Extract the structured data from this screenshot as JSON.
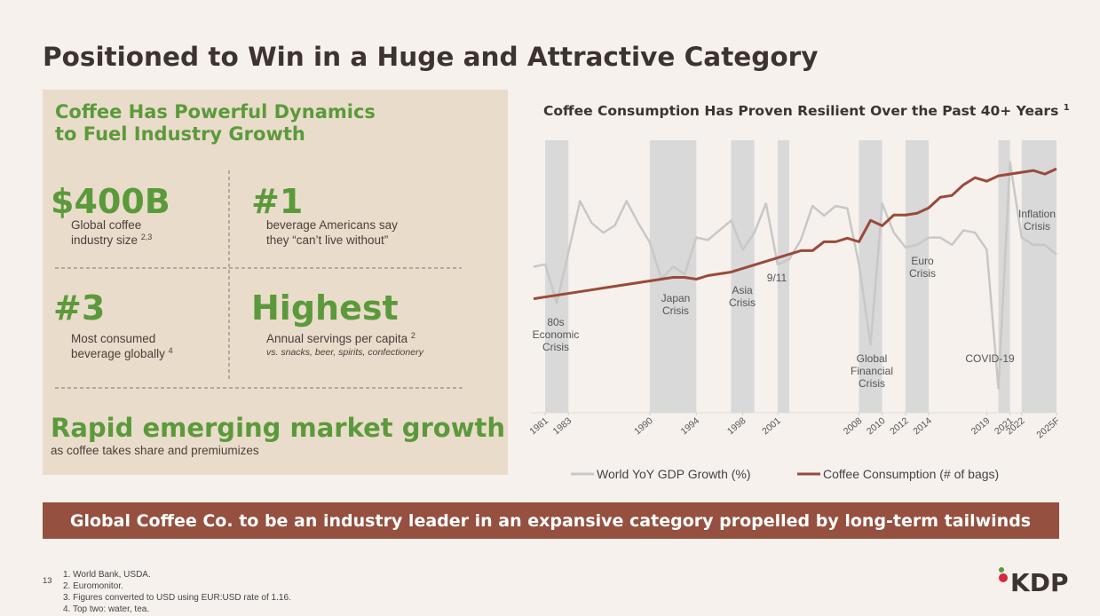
{
  "title": "Positioned to Win in a Huge and Attractive Category",
  "panel": {
    "heading": [
      "Coffee Has Powerful Dynamics",
      "to Fuel Industry Growth"
    ],
    "stats": [
      {
        "value": "$400B",
        "lines": [
          "Global coffee",
          "industry size"
        ],
        "sup": "2,3"
      },
      {
        "value": "#1",
        "lines": [
          "beverage Americans say",
          "they “can’t live without”"
        ]
      },
      {
        "value": "#3",
        "lines": [
          "Most consumed",
          "beverage globally"
        ],
        "sup": "4"
      },
      {
        "value": "Highest",
        "lines": [
          "Annual servings per capita"
        ],
        "sup": "2",
        "note": "vs. snacks, beer, spirits, confectionery"
      }
    ],
    "growth": "Rapid emerging market growth",
    "growth_note": "as coffee takes share and premiumizes"
  },
  "banner": "Global Coffee Co. to be an industry leader in an expansive category propelled by long-term tailwinds",
  "page_number": "13",
  "footnotes": [
    "1. World Bank, USDA.",
    "2. Euromonitor.",
    "3. Figures converted to USD using EUR:USD rate of 1.16.",
    "4. Top two: water, tea."
  ],
  "logo": "KDP",
  "chart_data": {
    "type": "line",
    "title": "Coffee Consumption Has Proven Resilient Over the Past 40+ Years",
    "title_note": "1",
    "x": [
      1980,
      1981,
      1982,
      1983,
      1984,
      1985,
      1986,
      1987,
      1988,
      1989,
      1990,
      1991,
      1992,
      1993,
      1994,
      1995,
      1996,
      1997,
      1998,
      1999,
      2000,
      2001,
      2002,
      2003,
      2004,
      2005,
      2006,
      2007,
      2008,
      2009,
      2010,
      2011,
      2012,
      2013,
      2014,
      2015,
      2016,
      2017,
      2018,
      2019,
      2020,
      2021,
      2022,
      2023,
      2024,
      2025
    ],
    "xlim": [
      1980,
      2025
    ],
    "xticks": [
      1981,
      1983,
      1990,
      1994,
      1998,
      2001,
      2008,
      2010,
      2012,
      2014,
      2019,
      2021,
      2022,
      {
        "value": 2025,
        "label": "2025F"
      }
    ],
    "ylim": [
      -4.1,
      7.1
    ],
    "y2lim": [
      16,
      169
    ],
    "series": [
      {
        "name": "World YoY GDP Growth (%)",
        "color": "#c8c8c8",
        "values": [
          1.9,
          2.0,
          0.4,
          2.5,
          4.6,
          3.7,
          3.3,
          3.6,
          4.6,
          3.7,
          2.9,
          1.4,
          1.9,
          1.6,
          3.1,
          3.0,
          3.4,
          3.8,
          2.6,
          3.3,
          4.5,
          2.0,
          2.2,
          3.0,
          4.4,
          4.0,
          4.4,
          4.3,
          2.0,
          -1.3,
          4.5,
          3.3,
          2.7,
          2.8,
          3.1,
          3.1,
          2.8,
          3.4,
          3.3,
          2.6,
          -3.1,
          6.2,
          3.1,
          2.8,
          2.8,
          2.4
        ]
      },
      {
        "name": "Coffee Consumption (# of bags)",
        "color": "#9a4a3a",
        "axis": "y2",
        "values": [
          80,
          81,
          82,
          83,
          84,
          85,
          86,
          87,
          88,
          89,
          90,
          91,
          92,
          92,
          91,
          93,
          94,
          95,
          97,
          99,
          101,
          103,
          105,
          107,
          107,
          112,
          112,
          114,
          112,
          124,
          121,
          127,
          127,
          128,
          131,
          137,
          138,
          144,
          148,
          146,
          149,
          150,
          151,
          152,
          150,
          153
        ]
      }
    ],
    "crises": [
      {
        "label": [
          "80s",
          "Economic",
          "Crisis"
        ],
        "start": 1981,
        "end": 1983
      },
      {
        "label": [
          "Japan",
          "Crisis"
        ],
        "start": 1990,
        "end": 1994
      },
      {
        "label": [
          "Asia",
          "Crisis"
        ],
        "start": 1997,
        "end": 1999
      },
      {
        "label": [
          "9/11"
        ],
        "start": 2001,
        "end": 2002
      },
      {
        "label": [
          "Global",
          "Financial",
          "Crisis"
        ],
        "start": 2008,
        "end": 2010
      },
      {
        "label": [
          "Euro",
          "Crisis"
        ],
        "start": 2012,
        "end": 2014
      },
      {
        "label": [
          "COVID-19"
        ],
        "start": 2020,
        "end": 2021
      },
      {
        "label": [
          "Inflation",
          "Crisis"
        ],
        "start": 2022,
        "end": 2025
      }
    ],
    "band_color": "#d9d9d9"
  }
}
